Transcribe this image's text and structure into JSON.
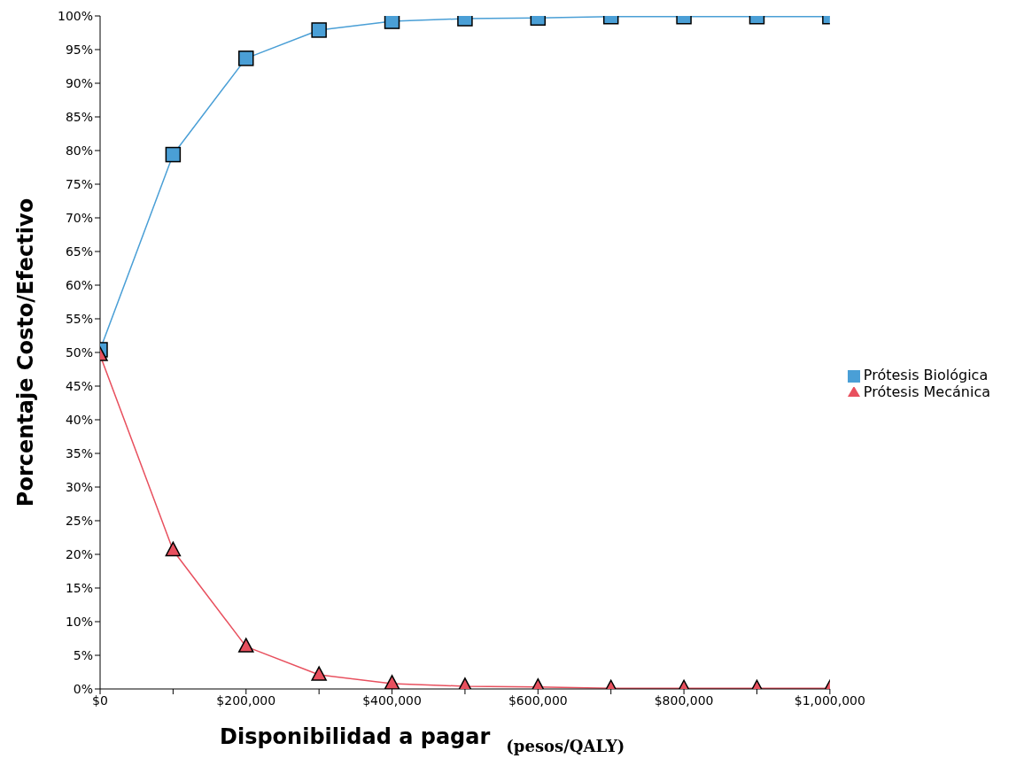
{
  "chart_data": {
    "type": "line",
    "xlabel": "Disponibilidad a pagar",
    "ylabel": "Porcentaje Costo/Efectivo",
    "annotations": [
      "(pesos/QALY)"
    ],
    "x": [
      0,
      100000,
      200000,
      300000,
      400000,
      500000,
      600000,
      700000,
      800000,
      900000,
      1000000
    ],
    "series": [
      {
        "name": "Prótesis Biológica",
        "color": "#4a9fd6",
        "marker": "square",
        "values": [
          50.4,
          79.4,
          93.7,
          97.9,
          99.2,
          99.6,
          99.7,
          99.9,
          99.9,
          99.9,
          99.9
        ]
      },
      {
        "name": "Prótesis Mecánica",
        "color": "#e8505e",
        "marker": "triangle",
        "values": [
          49.6,
          20.6,
          6.3,
          2.1,
          0.8,
          0.4,
          0.3,
          0.1,
          0.1,
          0.1,
          0.1
        ]
      }
    ],
    "xlim": [
      0,
      1000000
    ],
    "xticks": [
      {
        "value": 0,
        "label": "$0"
      },
      {
        "value": 100000,
        "label": null
      },
      {
        "value": 200000,
        "label": "$200,000"
      },
      {
        "value": 300000,
        "label": null
      },
      {
        "value": 400000,
        "label": "$400,000"
      },
      {
        "value": 500000,
        "label": null
      },
      {
        "value": 600000,
        "label": "$600,000"
      },
      {
        "value": 700000,
        "label": null
      },
      {
        "value": 800000,
        "label": "$800,000"
      },
      {
        "value": 900000,
        "label": null
      },
      {
        "value": 1000000,
        "label": "$1,000,000"
      }
    ],
    "ylim": [
      0,
      100
    ],
    "yticks": [
      {
        "value": 0,
        "label": "0%"
      },
      {
        "value": 5,
        "label": "5%"
      },
      {
        "value": 10,
        "label": "10%"
      },
      {
        "value": 15,
        "label": "15%"
      },
      {
        "value": 20,
        "label": "20%"
      },
      {
        "value": 25,
        "label": "25%"
      },
      {
        "value": 30,
        "label": "30%"
      },
      {
        "value": 35,
        "label": "35%"
      },
      {
        "value": 40,
        "label": "40%"
      },
      {
        "value": 45,
        "label": "45%"
      },
      {
        "value": 50,
        "label": "50%"
      },
      {
        "value": 55,
        "label": "55%"
      },
      {
        "value": 60,
        "label": "60%"
      },
      {
        "value": 65,
        "label": "65%"
      },
      {
        "value": 70,
        "label": "70%"
      },
      {
        "value": 75,
        "label": "75%"
      },
      {
        "value": 80,
        "label": "80%"
      },
      {
        "value": 85,
        "label": "85%"
      },
      {
        "value": 90,
        "label": "90%"
      },
      {
        "value": 95,
        "label": "95%"
      },
      {
        "value": 100,
        "label": "100%"
      }
    ],
    "grid": false,
    "legend": "right"
  }
}
